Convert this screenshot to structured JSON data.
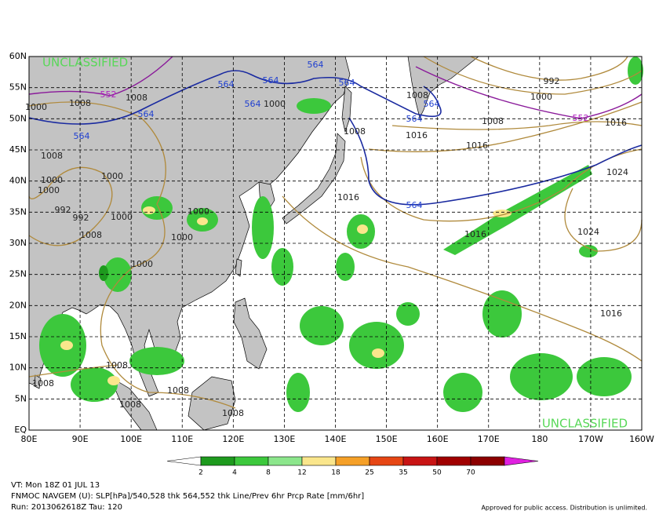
{
  "map": {
    "lat_labels": [
      "60N",
      "55N",
      "50N",
      "45N",
      "40N",
      "35N",
      "30N",
      "25N",
      "20N",
      "15N",
      "10N",
      "5N",
      "EQ"
    ],
    "lon_labels": [
      "80E",
      "90E",
      "100E",
      "110E",
      "120E",
      "130E",
      "140E",
      "150E",
      "160E",
      "170E",
      "180",
      "170W",
      "160W"
    ],
    "classification": [
      "UNCLASSIFIED",
      "UNCLASSIFIED"
    ],
    "contour_labels": [
      "552",
      "1008",
      "1008",
      "564",
      "564",
      "564",
      "564",
      "564",
      "1000",
      "564",
      "564",
      "1008",
      "1000",
      "1000",
      "992",
      "992",
      "1008",
      "1000",
      "1000",
      "1000",
      "1000",
      "1000",
      "1008",
      "1016",
      "1008",
      "564",
      "564",
      "1008",
      "1016",
      "992",
      "1000",
      "552",
      "1016",
      "1024",
      "564",
      "1016",
      "1016",
      "1024",
      "1016",
      "1008",
      "1008",
      "1008",
      "1008",
      "1008",
      "1000"
    ],
    "colorbar": {
      "labels": [
        "2",
        "4",
        "8",
        "12",
        "18",
        "25",
        "35",
        "50",
        "70"
      ],
      "colors": [
        "#1e9a1e",
        "#3cc83c",
        "#8ce68c",
        "#fae68c",
        "#f5a028",
        "#e64614",
        "#c81414",
        "#a00000",
        "#8c0000",
        "#e020e0"
      ]
    },
    "footer": {
      "valid_time": "VT: Mon 18Z 01 JUL 13",
      "product": "FNMOC NAVGEM (U): SLP[hPa]/540,528 thk 564,552 thk Line/Prev 6hr Prcp Rate [mm/6hr]",
      "run": "Run: 2013062618Z Tau: 120",
      "release": "Approved for public access. Distribution is unlimited."
    }
  }
}
